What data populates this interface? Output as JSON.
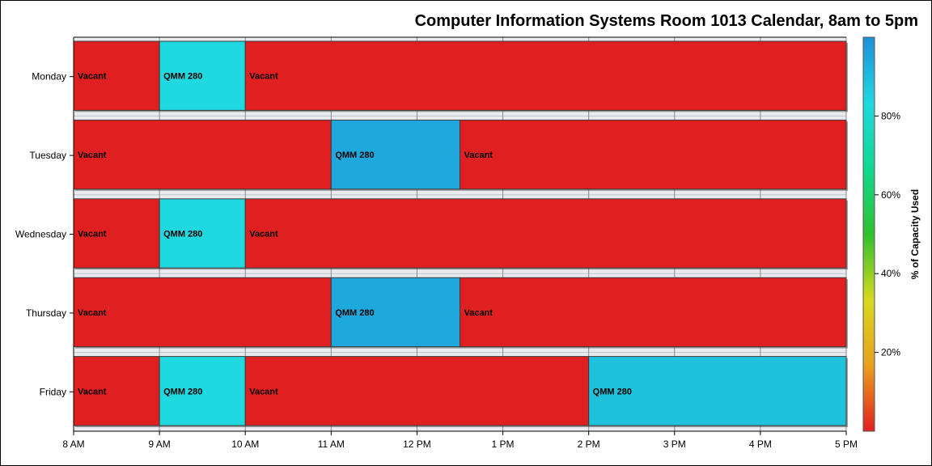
{
  "chart_data": {
    "type": "gantt",
    "title": "Computer Information Systems Room 1013 Calendar, 8am to 5pm",
    "x_ticks": [
      "8 AM",
      "9 AM",
      "10 AM",
      "11 AM",
      "12 PM",
      "1 PM",
      "2 PM",
      "3 PM",
      "4 PM",
      "5 PM"
    ],
    "x_range_hours": [
      8,
      17
    ],
    "rows": [
      {
        "day": "Monday",
        "segments": [
          {
            "label": "Vacant",
            "start": 8,
            "end": 9,
            "capacity_pct": 0
          },
          {
            "label": "QMM 280",
            "start": 9,
            "end": 10,
            "capacity_pct": 85
          },
          {
            "label": "Vacant",
            "start": 10,
            "end": 17,
            "capacity_pct": 0
          }
        ]
      },
      {
        "day": "Tuesday",
        "segments": [
          {
            "label": "Vacant",
            "start": 8,
            "end": 11,
            "capacity_pct": 0
          },
          {
            "label": "QMM 280",
            "start": 11,
            "end": 12.5,
            "capacity_pct": 95
          },
          {
            "label": "Vacant",
            "start": 12.5,
            "end": 17,
            "capacity_pct": 0
          }
        ]
      },
      {
        "day": "Wednesday",
        "segments": [
          {
            "label": "Vacant",
            "start": 8,
            "end": 9,
            "capacity_pct": 0
          },
          {
            "label": "QMM 280",
            "start": 9,
            "end": 10,
            "capacity_pct": 85
          },
          {
            "label": "Vacant",
            "start": 10,
            "end": 17,
            "capacity_pct": 0
          }
        ]
      },
      {
        "day": "Thursday",
        "segments": [
          {
            "label": "Vacant",
            "start": 8,
            "end": 11,
            "capacity_pct": 0
          },
          {
            "label": "QMM 280",
            "start": 11,
            "end": 12.5,
            "capacity_pct": 95
          },
          {
            "label": "Vacant",
            "start": 12.5,
            "end": 17,
            "capacity_pct": 0
          }
        ]
      },
      {
        "day": "Friday",
        "segments": [
          {
            "label": "Vacant",
            "start": 8,
            "end": 9,
            "capacity_pct": 0
          },
          {
            "label": "QMM 280",
            "start": 9,
            "end": 10,
            "capacity_pct": 85
          },
          {
            "label": "Vacant",
            "start": 10,
            "end": 14,
            "capacity_pct": 0
          },
          {
            "label": "QMM 280",
            "start": 14,
            "end": 17,
            "capacity_pct": 90
          }
        ]
      }
    ],
    "colorbar": {
      "title": "% of Capacity Used",
      "range": [
        0,
        100
      ],
      "ticks": [
        {
          "value": 20,
          "label": "20%"
        },
        {
          "value": 40,
          "label": "40%"
        },
        {
          "value": 60,
          "label": "60%"
        },
        {
          "value": 80,
          "label": "80%"
        }
      ],
      "stops": [
        "#e02020",
        "#e8a020",
        "#d8d820",
        "#30c030",
        "#10d890",
        "#20d8e0",
        "#1e90d8"
      ]
    },
    "grid": true
  }
}
